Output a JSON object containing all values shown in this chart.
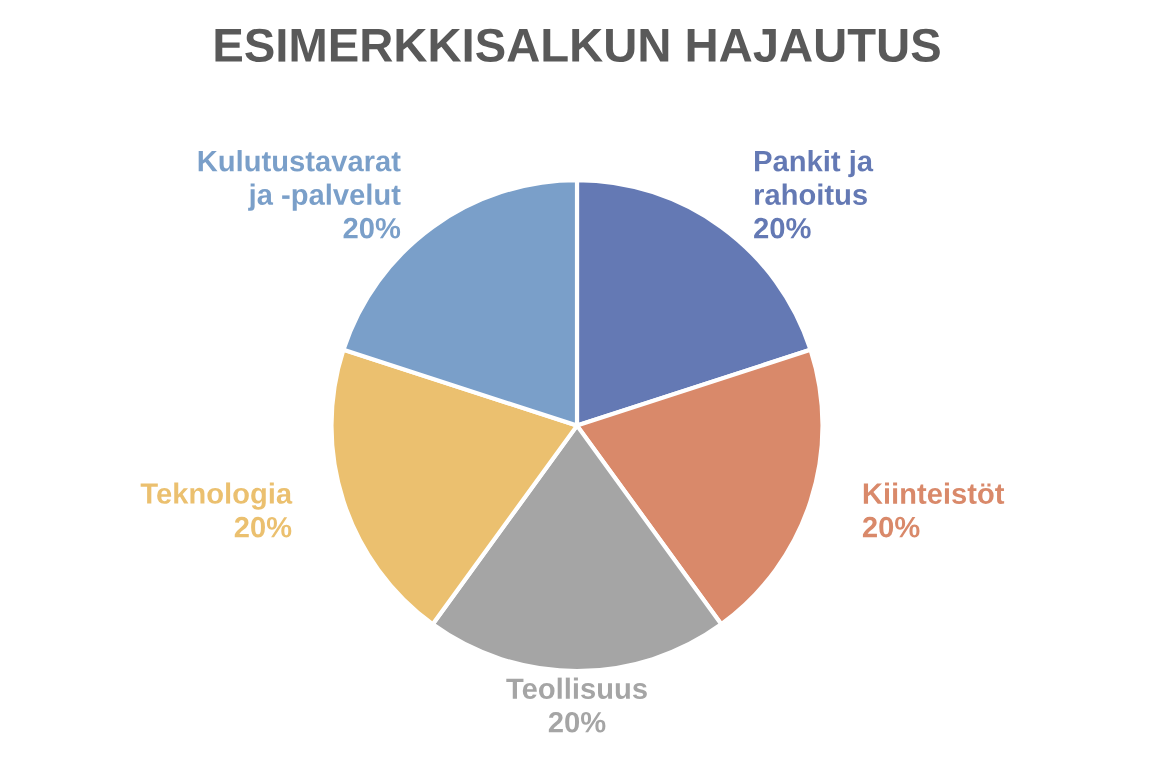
{
  "chart_data": {
    "type": "pie",
    "title": "ESIMERKKISALKUN HAJAUTUS",
    "categories": [
      "Pankit ja rahoitus",
      "Kiinteistöt",
      "Teollisuus",
      "Teknologia",
      "Kulutustavarat ja -palvelut"
    ],
    "values": [
      20,
      20,
      20,
      20,
      20
    ],
    "value_labels": [
      "20%",
      "20%",
      "20%",
      "20%",
      "20%"
    ],
    "colors": [
      "#6479b4",
      "#d9896a",
      "#a5a5a5",
      "#ebc06f",
      "#7a9fc9"
    ],
    "legend": false
  }
}
